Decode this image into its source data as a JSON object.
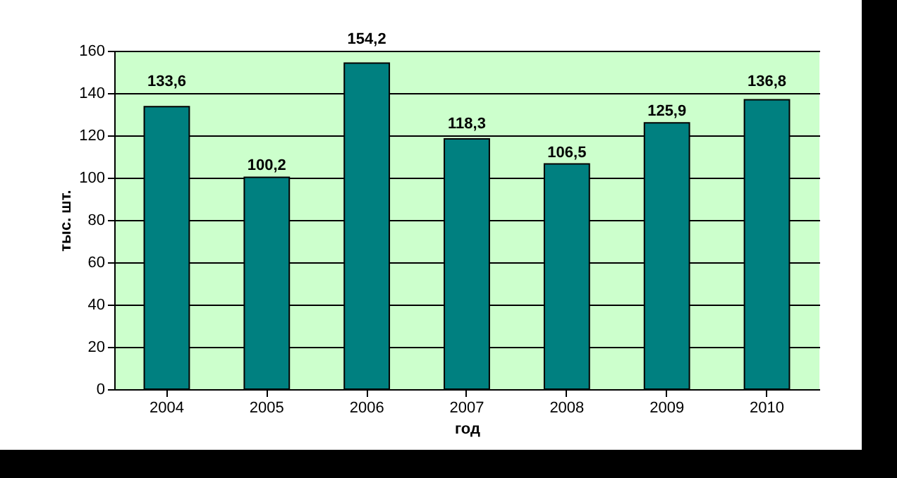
{
  "chart_data": {
    "type": "bar",
    "xlabel": "год",
    "ylabel": "тыс. шт.",
    "categories": [
      "2004",
      "2005",
      "2006",
      "2007",
      "2008",
      "2009",
      "2010"
    ],
    "values": [
      133.6,
      100.2,
      154.2,
      118.3,
      106.5,
      125.9,
      136.8
    ],
    "value_labels": [
      "133,6",
      "100,2",
      "154,2",
      "118,3",
      "106,5",
      "125,9",
      "136,8"
    ],
    "color": "#008080",
    "ylim": [
      0,
      160
    ],
    "yticks": [
      0,
      20,
      40,
      60,
      80,
      100,
      120,
      140,
      160
    ],
    "grid": "y"
  }
}
